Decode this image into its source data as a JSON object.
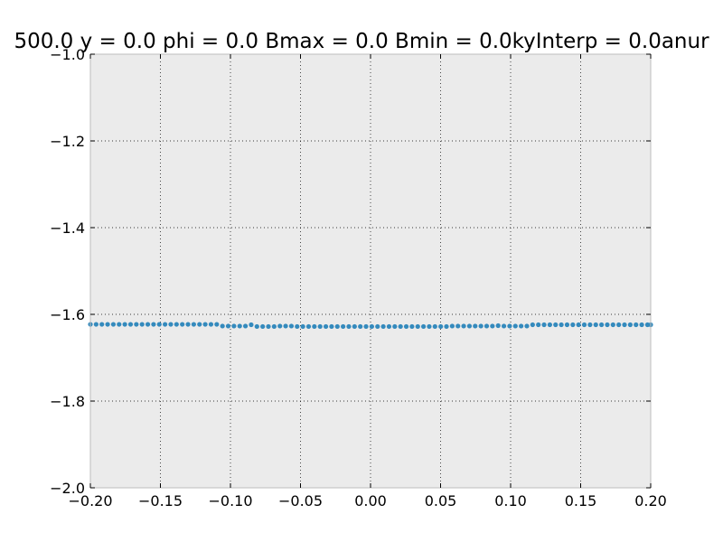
{
  "chart_data": {
    "type": "scatter",
    "title": "500.0 y = 0.0 phi = 0.0 Bmax = 0.0 Bmin = 0.0kyInterp = 0.0anur",
    "xlabel": "",
    "ylabel": "",
    "xlim": [
      -0.2,
      0.2
    ],
    "ylim": [
      -2.0,
      -1.0
    ],
    "x_ticks": [
      -0.2,
      -0.15,
      -0.1,
      -0.05,
      0.0,
      0.05,
      0.1,
      0.15,
      0.2
    ],
    "x_tick_labels": [
      "−0.20",
      "−0.15",
      "−0.10",
      "−0.05",
      "0.00",
      "0.05",
      "0.10",
      "0.15",
      "0.20"
    ],
    "y_ticks": [
      -1.0,
      -1.2,
      -1.4,
      -1.6,
      -1.8,
      -2.0
    ],
    "y_tick_labels": [
      "−1.0",
      "−1.2",
      "−1.4",
      "−1.6",
      "−1.8",
      "−2.0"
    ],
    "grid": true,
    "background_color": "#ebebeb",
    "marker_color": "#348abd",
    "series": [
      {
        "x": [
          -0.2,
          -0.1959,
          -0.1918,
          -0.1877,
          -0.1836,
          -0.1795,
          -0.1754,
          -0.1713,
          -0.1672,
          -0.1631,
          -0.159,
          -0.1549,
          -0.1508,
          -0.1467,
          -0.1426,
          -0.1385,
          -0.1344,
          -0.1303,
          -0.1262,
          -0.1221,
          -0.118,
          -0.1139,
          -0.1098,
          -0.1057,
          -0.1016,
          -0.0975,
          -0.0934,
          -0.0893,
          -0.0852,
          -0.0811,
          -0.077,
          -0.0729,
          -0.0688,
          -0.0647,
          -0.0606,
          -0.0565,
          -0.0524,
          -0.0483,
          -0.0442,
          -0.0401,
          -0.036,
          -0.0319,
          -0.0278,
          -0.0237,
          -0.0196,
          -0.0155,
          -0.0114,
          -0.0073,
          -0.0032,
          0.0009,
          0.005,
          0.0091,
          0.0132,
          0.0173,
          0.0214,
          0.0255,
          0.0296,
          0.0337,
          0.0378,
          0.0419,
          0.046,
          0.0501,
          0.0542,
          0.0583,
          0.0624,
          0.0665,
          0.0706,
          0.0747,
          0.0788,
          0.0829,
          0.087,
          0.0911,
          0.0952,
          0.0993,
          0.1034,
          0.1075,
          0.1116,
          0.1157,
          0.1198,
          0.1239,
          0.128,
          0.1321,
          0.1362,
          0.1403,
          0.1444,
          0.1485,
          0.1526,
          0.1567,
          0.1608,
          0.1649,
          0.169,
          0.1731,
          0.1772,
          0.1813,
          0.1854,
          0.1895,
          0.1936,
          0.1977,
          0.2
        ],
        "y": [
          -1.623,
          -1.623,
          -1.623,
          -1.623,
          -1.623,
          -1.623,
          -1.623,
          -1.623,
          -1.623,
          -1.623,
          -1.623,
          -1.623,
          -1.623,
          -1.623,
          -1.623,
          -1.623,
          -1.623,
          -1.623,
          -1.623,
          -1.623,
          -1.623,
          -1.623,
          -1.623,
          -1.627,
          -1.627,
          -1.627,
          -1.627,
          -1.627,
          -1.624,
          -1.628,
          -1.628,
          -1.628,
          -1.628,
          -1.627,
          -1.627,
          -1.627,
          -1.628,
          -1.628,
          -1.628,
          -1.628,
          -1.628,
          -1.628,
          -1.628,
          -1.628,
          -1.628,
          -1.628,
          -1.628,
          -1.628,
          -1.628,
          -1.628,
          -1.628,
          -1.628,
          -1.628,
          -1.628,
          -1.628,
          -1.628,
          -1.628,
          -1.628,
          -1.628,
          -1.628,
          -1.628,
          -1.628,
          -1.628,
          -1.627,
          -1.627,
          -1.627,
          -1.627,
          -1.627,
          -1.627,
          -1.627,
          -1.627,
          -1.626,
          -1.627,
          -1.627,
          -1.627,
          -1.627,
          -1.627,
          -1.624,
          -1.624,
          -1.624,
          -1.624,
          -1.624,
          -1.624,
          -1.624,
          -1.624,
          -1.624,
          -1.624,
          -1.624,
          -1.624,
          -1.624,
          -1.624,
          -1.624,
          -1.624,
          -1.624,
          -1.624,
          -1.624,
          -1.624,
          -1.624,
          -1.624
        ]
      }
    ]
  }
}
